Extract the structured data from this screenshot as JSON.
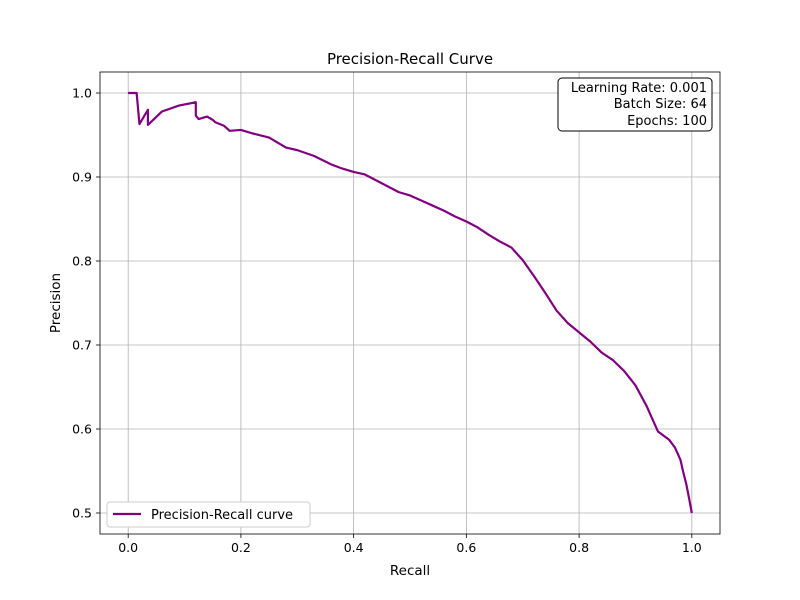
{
  "chart_data": {
    "type": "line",
    "title": "Precision-Recall Curve",
    "xlabel": "Recall",
    "ylabel": "Precision",
    "xlim": [
      -0.05,
      1.05
    ],
    "ylim": [
      0.475,
      1.025
    ],
    "x_ticks": [
      0.0,
      0.2,
      0.4,
      0.6,
      0.8,
      1.0
    ],
    "x_tick_labels": [
      "0.0",
      "0.2",
      "0.4",
      "0.6",
      "0.8",
      "1.0"
    ],
    "y_ticks": [
      0.5,
      0.6,
      0.7,
      0.8,
      0.9,
      1.0
    ],
    "y_tick_labels": [
      "0.5",
      "0.6",
      "0.7",
      "0.8",
      "0.9",
      "1.0"
    ],
    "grid": true,
    "legend_position": "lower-left",
    "info_box_position": "top-right",
    "info_box": [
      "Learning Rate: 0.001",
      "Batch Size: 64",
      "Epochs: 100"
    ],
    "series": [
      {
        "name": "Precision-Recall curve",
        "color": "#800080",
        "x": [
          0.0,
          0.015,
          0.02,
          0.035,
          0.035,
          0.06,
          0.09,
          0.12,
          0.12,
          0.125,
          0.14,
          0.15,
          0.155,
          0.17,
          0.18,
          0.2,
          0.22,
          0.25,
          0.28,
          0.3,
          0.33,
          0.36,
          0.38,
          0.4,
          0.42,
          0.44,
          0.46,
          0.48,
          0.5,
          0.52,
          0.54,
          0.56,
          0.58,
          0.6,
          0.62,
          0.64,
          0.66,
          0.68,
          0.7,
          0.72,
          0.74,
          0.76,
          0.78,
          0.8,
          0.82,
          0.84,
          0.86,
          0.88,
          0.9,
          0.92,
          0.93,
          0.94,
          0.96,
          0.97,
          0.98,
          0.985,
          0.99,
          0.995,
          1.0
        ],
        "y": [
          1.0,
          1.0,
          0.963,
          0.98,
          0.962,
          0.978,
          0.985,
          0.989,
          0.973,
          0.969,
          0.972,
          0.968,
          0.965,
          0.961,
          0.955,
          0.956,
          0.952,
          0.947,
          0.935,
          0.932,
          0.925,
          0.915,
          0.91,
          0.906,
          0.903,
          0.896,
          0.889,
          0.882,
          0.878,
          0.872,
          0.866,
          0.86,
          0.853,
          0.847,
          0.84,
          0.831,
          0.823,
          0.816,
          0.801,
          0.782,
          0.762,
          0.741,
          0.726,
          0.715,
          0.704,
          0.691,
          0.682,
          0.669,
          0.652,
          0.627,
          0.612,
          0.597,
          0.587,
          0.578,
          0.563,
          0.548,
          0.535,
          0.518,
          0.5
        ]
      }
    ]
  }
}
